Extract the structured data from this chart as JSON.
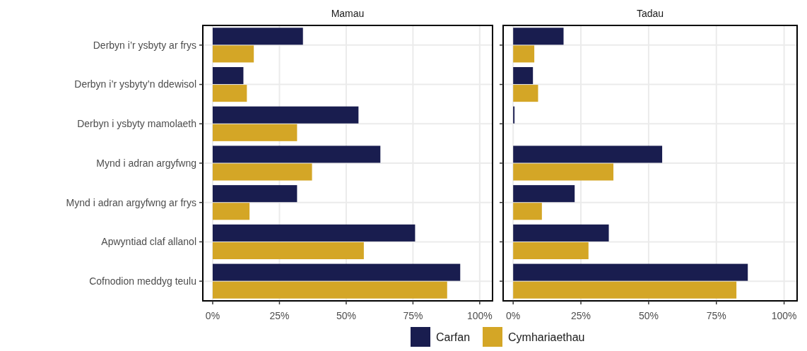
{
  "chart_data": [
    {
      "type": "bar",
      "orientation": "horizontal",
      "title": "Mamau",
      "categories": [
        "Derbyn i’r ysbyty ar frys",
        "Derbyn i’r ysbyty’n ddewisol",
        "Derbyn i ysbyty mamolaeth",
        "Mynd i adran argyfwng",
        "Mynd i adran argyfwng ar frys",
        "Apwyntiad claf allanol",
        "Cofnodion meddyg teulu"
      ],
      "series": [
        {
          "name": "Carfan",
          "color": "#191d4f",
          "values": [
            33.8,
            11.5,
            54.6,
            62.8,
            31.6,
            75.8,
            92.7
          ]
        },
        {
          "name": "Cymhariaethau",
          "color": "#d4a626",
          "values": [
            15.4,
            12.8,
            31.6,
            37.2,
            13.8,
            56.6,
            87.8
          ]
        }
      ],
      "xlim": [
        -3.7,
        104.8
      ],
      "xticks": [
        {
          "value": 0,
          "label": "0%"
        },
        {
          "value": 25,
          "label": "25%"
        },
        {
          "value": 50,
          "label": "50%"
        },
        {
          "value": 75,
          "label": "75%"
        },
        {
          "value": 100,
          "label": "100%"
        }
      ],
      "grid": true,
      "legend": "bottom"
    },
    {
      "type": "bar",
      "orientation": "horizontal",
      "title": "Tadau",
      "categories": [
        "Derbyn i’r ysbyty ar frys",
        "Derbyn i’r ysbyty’n ddewisol",
        "Derbyn i ysbyty mamolaeth",
        "Mynd i adran argyfwng",
        "Mynd i adran argyfwng ar frys",
        "Apwyntiad claf allanol",
        "Cofnodion meddyg teulu"
      ],
      "series": [
        {
          "name": "Carfan",
          "color": "#191d4f",
          "values": [
            18.6,
            7.3,
            0.5,
            55.0,
            22.7,
            35.3,
            86.6
          ]
        },
        {
          "name": "Cymhariaethau",
          "color": "#d4a626",
          "values": [
            7.8,
            9.2,
            null,
            37.0,
            10.6,
            27.8,
            82.4
          ]
        }
      ],
      "xlim": [
        -3.7,
        104.8
      ],
      "xticks": [
        {
          "value": 0,
          "label": "0%"
        },
        {
          "value": 25,
          "label": "25%"
        },
        {
          "value": 50,
          "label": "50%"
        },
        {
          "value": 75,
          "label": "75%"
        },
        {
          "value": 100,
          "label": "100%"
        }
      ],
      "grid": true,
      "tick_labels": "x",
      "legend": "bottom"
    }
  ]
}
